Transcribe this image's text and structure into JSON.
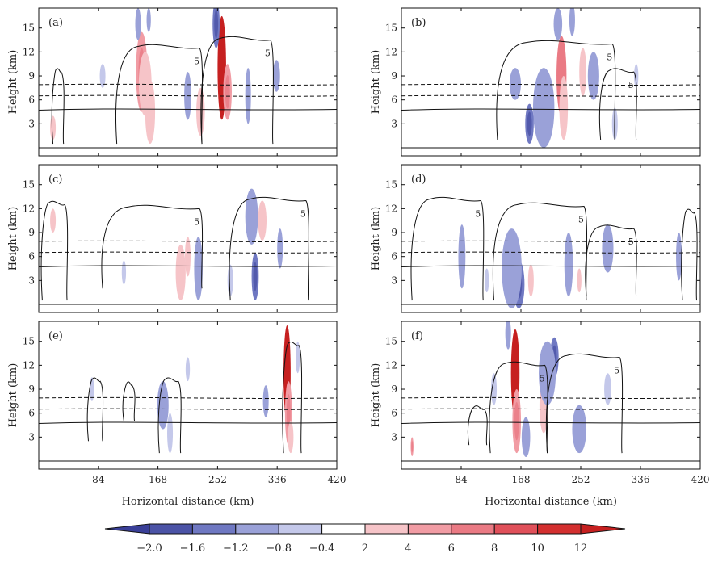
{
  "chart_data": {
    "type": "contour",
    "panel_labels": [
      "(a)",
      "(b)",
      "(c)",
      "(d)",
      "(e)",
      "(f)"
    ],
    "ylabel": "Height (km)",
    "xlabel": "Horizontal distance (km)",
    "y_ticks": [
      3,
      6,
      9,
      12,
      15
    ],
    "ylim": [
      0,
      17.5
    ],
    "x_ticks": [
      84,
      168,
      252,
      336,
      420
    ],
    "xlim": [
      0,
      420
    ],
    "contour_label": "5",
    "solid_line_height_km": 4.8,
    "dashed_line_heights_km": [
      6.5,
      7.9
    ],
    "colorbar": {
      "labels": [
        "-2.0",
        "-1.6",
        "-1.2",
        "-0.8",
        "-0.4",
        "2",
        "4",
        "6",
        "8",
        "10",
        "12"
      ],
      "colors": [
        "#4b53a6",
        "#6f78c2",
        "#9aa1d8",
        "#c4c8ea",
        "#ffffff",
        "#f6c4c8",
        "#f19ca4",
        "#ea7a84",
        "#e0505a",
        "#d32f2f"
      ],
      "low_color": "#3a3f98",
      "high_color": "#c62020"
    },
    "panels": [
      {
        "label": "(a)",
        "features": [
          {
            "x": 145,
            "z": 9.5,
            "w": 8,
            "h": 5.0,
            "v": 4
          },
          {
            "x": 150,
            "z": 8.0,
            "w": 9,
            "h": 4.0,
            "v": 2
          },
          {
            "x": 157,
            "z": 4.5,
            "w": 7,
            "h": 4.0,
            "v": 2
          },
          {
            "x": 258,
            "z": 10.0,
            "w": 6,
            "h": 6.5,
            "v": 10
          },
          {
            "x": 266,
            "z": 7.0,
            "w": 6,
            "h": 3.5,
            "v": 4
          },
          {
            "x": 140,
            "z": 15.5,
            "w": 4,
            "h": 2.0,
            "v": -0.8
          },
          {
            "x": 155,
            "z": 16.0,
            "w": 3,
            "h": 1.5,
            "v": -0.8
          },
          {
            "x": 250,
            "z": 15.5,
            "w": 5,
            "h": 3.0,
            "v": -1.2
          },
          {
            "x": 210,
            "z": 6.5,
            "w": 5,
            "h": 3.0,
            "v": -0.8
          },
          {
            "x": 228,
            "z": 4.5,
            "w": 6,
            "h": 3.0,
            "v": 2
          },
          {
            "x": 295,
            "z": 6.5,
            "w": 4,
            "h": 3.5,
            "v": -0.8
          },
          {
            "x": 335,
            "z": 9.0,
            "w": 5,
            "h": 2.0,
            "v": -0.8
          },
          {
            "x": 20,
            "z": 2.5,
            "w": 4,
            "h": 1.5,
            "v": 2
          },
          {
            "x": 90,
            "z": 9.0,
            "w": 4,
            "h": 1.5,
            "v": -0.4
          }
        ]
      },
      {
        "label": "(b)",
        "features": [
          {
            "x": 225,
            "z": 9.0,
            "w": 7,
            "h": 5.0,
            "v": 6
          },
          {
            "x": 228,
            "z": 5.0,
            "w": 6,
            "h": 4.0,
            "v": 2
          },
          {
            "x": 200,
            "z": 5.0,
            "w": 15,
            "h": 5.0,
            "v": -0.8
          },
          {
            "x": 180,
            "z": 3.0,
            "w": 6,
            "h": 2.5,
            "v": -1.2
          },
          {
            "x": 255,
            "z": 9.5,
            "w": 5,
            "h": 3.0,
            "v": 2
          },
          {
            "x": 270,
            "z": 9.0,
            "w": 8,
            "h": 3.0,
            "v": -0.8
          },
          {
            "x": 220,
            "z": 15.5,
            "w": 6,
            "h": 2.0,
            "v": -0.8
          },
          {
            "x": 240,
            "z": 16.0,
            "w": 4,
            "h": 2.0,
            "v": -0.8
          },
          {
            "x": 160,
            "z": 8.0,
            "w": 8,
            "h": 2.0,
            "v": -0.8
          },
          {
            "x": 300,
            "z": 3.0,
            "w": 4,
            "h": 2.0,
            "v": -0.4
          },
          {
            "x": 330,
            "z": 9.0,
            "w": 3,
            "h": 1.5,
            "v": -0.4
          }
        ]
      },
      {
        "label": "(c)",
        "features": [
          {
            "x": 20,
            "z": 10.5,
            "w": 4,
            "h": 1.5,
            "v": 2
          },
          {
            "x": 200,
            "z": 4.0,
            "w": 7,
            "h": 3.5,
            "v": 2
          },
          {
            "x": 210,
            "z": 6.0,
            "w": 4,
            "h": 2.5,
            "v": 2
          },
          {
            "x": 225,
            "z": 4.5,
            "w": 6,
            "h": 4.0,
            "v": -0.8
          },
          {
            "x": 305,
            "z": 3.5,
            "w": 5,
            "h": 3.0,
            "v": -1.2
          },
          {
            "x": 315,
            "z": 10.5,
            "w": 6,
            "h": 2.5,
            "v": 2
          },
          {
            "x": 300,
            "z": 11.0,
            "w": 9,
            "h": 3.5,
            "v": -0.8
          },
          {
            "x": 340,
            "z": 7.0,
            "w": 4,
            "h": 2.5,
            "v": -0.8
          },
          {
            "x": 120,
            "z": 4.0,
            "w": 3,
            "h": 1.5,
            "v": -0.4
          },
          {
            "x": 270,
            "z": 3.0,
            "w": 4,
            "h": 2.0,
            "v": -0.4
          }
        ]
      },
      {
        "label": "(d)",
        "features": [
          {
            "x": 165,
            "z": 2.5,
            "w": 8,
            "h": 3.0,
            "v": -1.2
          },
          {
            "x": 155,
            "z": 4.5,
            "w": 14,
            "h": 5.0,
            "v": -0.8
          },
          {
            "x": 235,
            "z": 5.0,
            "w": 6,
            "h": 4.0,
            "v": -0.8
          },
          {
            "x": 182,
            "z": 3.0,
            "w": 4,
            "h": 2.0,
            "v": 2
          },
          {
            "x": 250,
            "z": 3.0,
            "w": 3,
            "h": 1.5,
            "v": 2
          },
          {
            "x": 85,
            "z": 6.0,
            "w": 5,
            "h": 4.0,
            "v": -0.8
          },
          {
            "x": 290,
            "z": 7.0,
            "w": 8,
            "h": 3.0,
            "v": -0.8
          },
          {
            "x": 390,
            "z": 6.0,
            "w": 4,
            "h": 3.0,
            "v": -0.8
          },
          {
            "x": 120,
            "z": 3.0,
            "w": 3,
            "h": 1.5,
            "v": -0.4
          }
        ]
      },
      {
        "label": "(e)",
        "features": [
          {
            "x": 350,
            "z": 11.0,
            "w": 5,
            "h": 6.0,
            "v": 10
          },
          {
            "x": 352,
            "z": 6.0,
            "w": 5,
            "h": 4.0,
            "v": 4
          },
          {
            "x": 355,
            "z": 3.0,
            "w": 4,
            "h": 2.0,
            "v": 2
          },
          {
            "x": 175,
            "z": 7.0,
            "w": 8,
            "h": 3.0,
            "v": -0.8
          },
          {
            "x": 185,
            "z": 3.5,
            "w": 4,
            "h": 2.5,
            "v": -0.4
          },
          {
            "x": 320,
            "z": 7.5,
            "w": 4,
            "h": 2.0,
            "v": -0.8
          },
          {
            "x": 365,
            "z": 13.0,
            "w": 3,
            "h": 2.0,
            "v": -0.4
          },
          {
            "x": 210,
            "z": 11.5,
            "w": 3,
            "h": 1.5,
            "v": -0.4
          },
          {
            "x": 75,
            "z": 9.0,
            "w": 3,
            "h": 1.5,
            "v": -0.4
          }
        ]
      },
      {
        "label": "(f)",
        "features": [
          {
            "x": 160,
            "z": 11.0,
            "w": 6,
            "h": 5.5,
            "v": 10
          },
          {
            "x": 162,
            "z": 5.0,
            "w": 6,
            "h": 4.0,
            "v": 4
          },
          {
            "x": 200,
            "z": 7.0,
            "w": 6,
            "h": 3.5,
            "v": 2
          },
          {
            "x": 215,
            "z": 13.0,
            "w": 6,
            "h": 2.5,
            "v": -1.2
          },
          {
            "x": 205,
            "z": 11.0,
            "w": 12,
            "h": 4.0,
            "v": -0.8
          },
          {
            "x": 250,
            "z": 4.0,
            "w": 10,
            "h": 3.0,
            "v": -0.8
          },
          {
            "x": 175,
            "z": 3.0,
            "w": 6,
            "h": 2.5,
            "v": -0.8
          },
          {
            "x": 150,
            "z": 16.0,
            "w": 4,
            "h": 2.0,
            "v": -0.8
          },
          {
            "x": 15,
            "z": 1.8,
            "w": 2,
            "h": 1.2,
            "v": 4
          },
          {
            "x": 130,
            "z": 9.0,
            "w": 4,
            "h": 2.0,
            "v": -0.4
          },
          {
            "x": 290,
            "z": 9.0,
            "w": 5,
            "h": 2.0,
            "v": -0.4
          }
        ]
      }
    ]
  }
}
